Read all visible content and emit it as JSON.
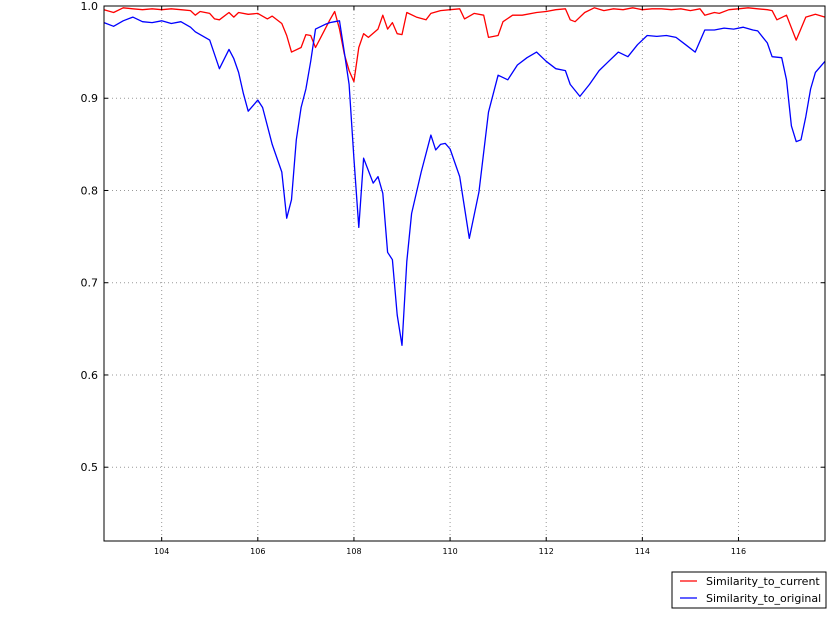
{
  "chart_data": {
    "type": "line",
    "title": "",
    "xlabel": "",
    "ylabel": "",
    "xlim": [
      102.8,
      117.8
    ],
    "ylim": [
      0.42,
      1.0
    ],
    "grid": true,
    "legend_position": "bottom-right",
    "x_ticks": [
      104,
      106,
      108,
      110,
      112,
      114,
      116
    ],
    "y_ticks": [
      0.5,
      0.6,
      0.7,
      0.8,
      0.9,
      1.0
    ],
    "x_tick_labels": [
      "104",
      "106",
      "108",
      "110",
      "112",
      "114",
      "116"
    ],
    "y_tick_labels": [
      "0.5",
      "0.6",
      "0.7",
      "0.8",
      "0.9",
      "1.0"
    ],
    "series": [
      {
        "name": "Similarity_to_current",
        "color": "#ff0000",
        "x": [
          102.8,
          103.0,
          103.2,
          103.4,
          103.6,
          103.8,
          104.0,
          104.2,
          104.4,
          104.6,
          104.7,
          104.8,
          105.0,
          105.1,
          105.2,
          105.4,
          105.5,
          105.6,
          105.8,
          106.0,
          106.2,
          106.3,
          106.5,
          106.6,
          106.7,
          106.9,
          107.0,
          107.1,
          107.2,
          107.3,
          107.5,
          107.6,
          107.7,
          107.8,
          107.9,
          108.0,
          108.1,
          108.2,
          108.3,
          108.5,
          108.6,
          108.7,
          108.8,
          108.9,
          109.0,
          109.1,
          109.3,
          109.5,
          109.6,
          109.8,
          110.0,
          110.2,
          110.3,
          110.5,
          110.7,
          110.8,
          111.0,
          111.1,
          111.3,
          111.5,
          111.8,
          112.0,
          112.2,
          112.4,
          112.5,
          112.6,
          112.8,
          113.0,
          113.2,
          113.4,
          113.6,
          113.8,
          114.0,
          114.2,
          114.4,
          114.6,
          114.8,
          115.0,
          115.2,
          115.3,
          115.5,
          115.6,
          115.8,
          116.0,
          116.2,
          116.4,
          116.6,
          116.7,
          116.8,
          117.0,
          117.2,
          117.4,
          117.6,
          117.8
        ],
        "values": [
          0.996,
          0.993,
          0.998,
          0.997,
          0.996,
          0.997,
          0.996,
          0.997,
          0.996,
          0.995,
          0.99,
          0.994,
          0.992,
          0.986,
          0.985,
          0.993,
          0.988,
          0.993,
          0.991,
          0.992,
          0.986,
          0.989,
          0.981,
          0.968,
          0.95,
          0.955,
          0.969,
          0.968,
          0.955,
          0.965,
          0.985,
          0.994,
          0.975,
          0.948,
          0.93,
          0.918,
          0.955,
          0.97,
          0.966,
          0.975,
          0.99,
          0.975,
          0.982,
          0.97,
          0.969,
          0.993,
          0.988,
          0.985,
          0.992,
          0.995,
          0.996,
          0.997,
          0.986,
          0.992,
          0.99,
          0.966,
          0.968,
          0.983,
          0.99,
          0.99,
          0.993,
          0.994,
          0.996,
          0.997,
          0.985,
          0.983,
          0.993,
          0.998,
          0.995,
          0.997,
          0.996,
          0.998,
          0.996,
          0.997,
          0.997,
          0.996,
          0.997,
          0.995,
          0.997,
          0.99,
          0.993,
          0.992,
          0.996,
          0.997,
          0.998,
          0.997,
          0.996,
          0.995,
          0.985,
          0.99,
          0.963,
          0.988,
          0.991,
          0.988
        ]
      },
      {
        "name": "Similarity_to_original",
        "color": "#0000ff",
        "x": [
          102.8,
          103.0,
          103.2,
          103.4,
          103.6,
          103.8,
          104.0,
          104.2,
          104.4,
          104.6,
          104.7,
          104.8,
          105.0,
          105.2,
          105.4,
          105.5,
          105.6,
          105.7,
          105.8,
          106.0,
          106.1,
          106.3,
          106.5,
          106.6,
          106.7,
          106.8,
          106.9,
          107.0,
          107.1,
          107.2,
          107.4,
          107.5,
          107.6,
          107.7,
          107.8,
          107.9,
          108.0,
          108.1,
          108.2,
          108.4,
          108.5,
          108.6,
          108.7,
          108.8,
          108.9,
          109.0,
          109.1,
          109.2,
          109.4,
          109.6,
          109.7,
          109.8,
          109.9,
          110.0,
          110.2,
          110.4,
          110.6,
          110.8,
          111.0,
          111.2,
          111.4,
          111.6,
          111.8,
          112.0,
          112.2,
          112.4,
          112.5,
          112.7,
          112.9,
          113.1,
          113.3,
          113.5,
          113.7,
          113.9,
          114.1,
          114.3,
          114.5,
          114.7,
          114.9,
          115.1,
          115.3,
          115.5,
          115.7,
          115.9,
          116.1,
          116.3,
          116.4,
          116.6,
          116.7,
          116.9,
          117.0,
          117.1,
          117.2,
          117.3,
          117.4,
          117.5,
          117.6,
          117.8
        ],
        "values": [
          0.982,
          0.978,
          0.984,
          0.988,
          0.983,
          0.982,
          0.984,
          0.981,
          0.983,
          0.977,
          0.972,
          0.969,
          0.963,
          0.932,
          0.953,
          0.943,
          0.928,
          0.905,
          0.886,
          0.898,
          0.89,
          0.85,
          0.82,
          0.77,
          0.79,
          0.855,
          0.89,
          0.91,
          0.94,
          0.975,
          0.98,
          0.982,
          0.983,
          0.984,
          0.95,
          0.915,
          0.835,
          0.76,
          0.835,
          0.808,
          0.815,
          0.797,
          0.733,
          0.725,
          0.665,
          0.632,
          0.723,
          0.775,
          0.82,
          0.86,
          0.844,
          0.85,
          0.851,
          0.845,
          0.815,
          0.748,
          0.798,
          0.885,
          0.925,
          0.92,
          0.936,
          0.944,
          0.95,
          0.94,
          0.932,
          0.93,
          0.915,
          0.902,
          0.915,
          0.93,
          0.94,
          0.95,
          0.945,
          0.958,
          0.968,
          0.967,
          0.968,
          0.966,
          0.958,
          0.95,
          0.974,
          0.974,
          0.976,
          0.975,
          0.977,
          0.974,
          0.973,
          0.96,
          0.945,
          0.944,
          0.92,
          0.87,
          0.853,
          0.855,
          0.88,
          0.91,
          0.928,
          0.94
        ]
      }
    ]
  }
}
